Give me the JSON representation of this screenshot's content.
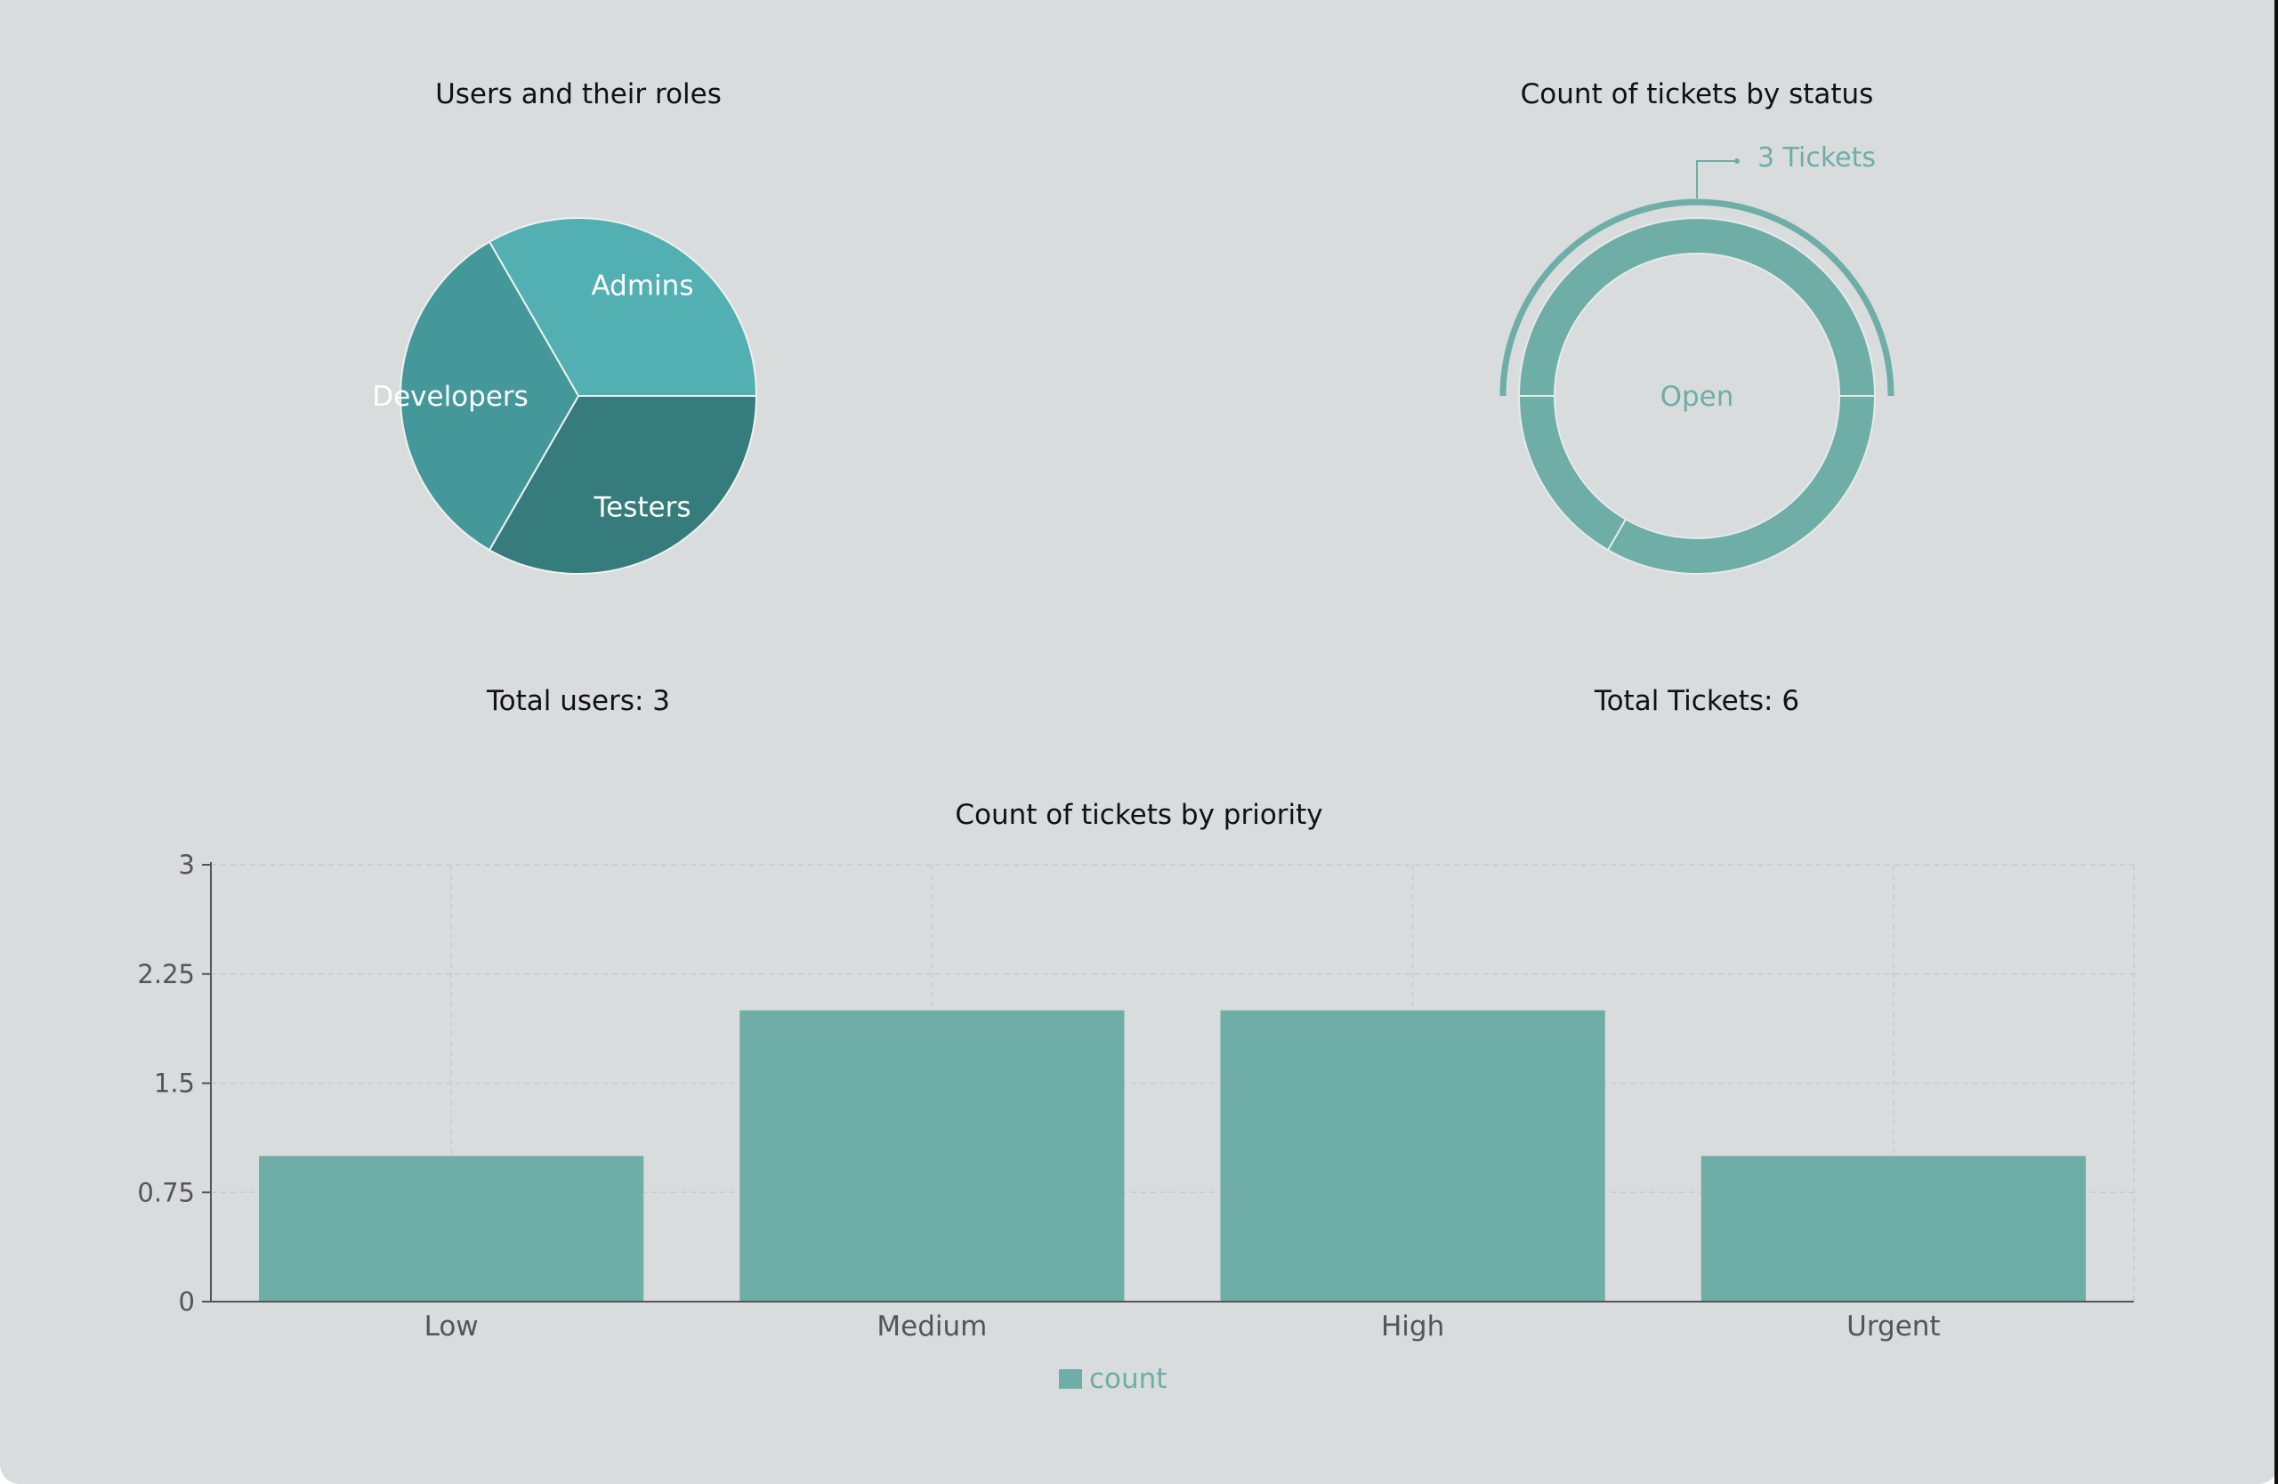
{
  "users_panel": {
    "title": "Users and their roles",
    "total_label": "Total users: 3"
  },
  "tickets_panel": {
    "title": "Count of tickets by status",
    "total_label": "Total Tickets: 6"
  },
  "priority_panel": {
    "title": "Count of tickets by priority"
  },
  "colors": {
    "background": "#d8dcdd",
    "admins": "#52b0b2",
    "developers": "#44989a",
    "testers": "#367c7c",
    "teal": "#6eaea6",
    "axis_text": "#555555",
    "grid": "#c6cacb"
  },
  "chart_data": [
    {
      "type": "pie",
      "title": "Users and their roles",
      "slices": [
        {
          "label": "Admins",
          "value": 1
        },
        {
          "label": "Testers",
          "value": 1
        },
        {
          "label": "Developers",
          "value": 1
        }
      ]
    },
    {
      "type": "pie",
      "subtype": "donut",
      "title": "Count of tickets by status",
      "center_label": "Open",
      "callout_label": "3 Tickets",
      "slices": [
        {
          "label": "Open",
          "value": 3
        },
        {
          "label": "",
          "value": 2
        },
        {
          "label": "",
          "value": 1
        }
      ]
    },
    {
      "type": "bar",
      "title": "Count of tickets by priority",
      "categories": [
        "Low",
        "Medium",
        "High",
        "Urgent"
      ],
      "series": [
        {
          "name": "count",
          "values": [
            1,
            2,
            2,
            1
          ]
        }
      ],
      "ylim": [
        0,
        3
      ],
      "yticks": [
        "0",
        "0.75",
        "1.5",
        "2.25",
        "3"
      ],
      "grid": true,
      "legend": "bottom"
    }
  ]
}
